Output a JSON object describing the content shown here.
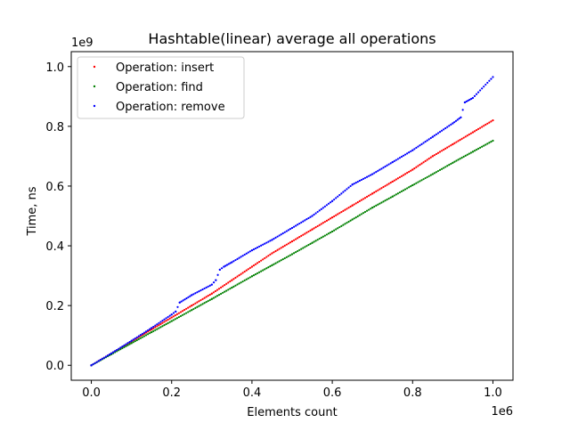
{
  "chart_data": {
    "type": "scatter",
    "title": "Hashtable(linear) average all operations",
    "xlabel": "Elements count",
    "ylabel": "Time, ns",
    "x_offset_label": "1e6",
    "y_offset_label": "1e9",
    "xlim": [
      -0.05,
      1.05
    ],
    "ylim": [
      -0.05,
      1.05
    ],
    "x_ticks": [
      0.0,
      0.2,
      0.4,
      0.6,
      0.8,
      1.0
    ],
    "x_tick_labels": [
      "0.0",
      "0.2",
      "0.4",
      "0.6",
      "0.8",
      "1.0"
    ],
    "y_ticks": [
      0.0,
      0.2,
      0.4,
      0.6,
      0.8,
      1.0
    ],
    "y_tick_labels": [
      "0.0",
      "0.2",
      "0.4",
      "0.6",
      "0.8",
      "1.0"
    ],
    "grid": false,
    "legend_position": "top-left",
    "series": [
      {
        "name": "Operation: insert",
        "color": "#ff0000",
        "x": [
          0.0,
          0.05,
          0.1,
          0.15,
          0.2,
          0.25,
          0.3,
          0.35,
          0.4,
          0.45,
          0.5,
          0.55,
          0.6,
          0.65,
          0.7,
          0.75,
          0.8,
          0.85,
          0.9,
          0.95,
          1.0
        ],
        "y": [
          0.0,
          0.04,
          0.08,
          0.12,
          0.16,
          0.2,
          0.24,
          0.285,
          0.33,
          0.375,
          0.415,
          0.455,
          0.495,
          0.535,
          0.575,
          0.615,
          0.655,
          0.7,
          0.74,
          0.78,
          0.82
        ]
      },
      {
        "name": "Operation: find",
        "color": "#008000",
        "x": [
          0.0,
          0.05,
          0.1,
          0.15,
          0.2,
          0.25,
          0.3,
          0.35,
          0.4,
          0.45,
          0.5,
          0.55,
          0.6,
          0.65,
          0.7,
          0.75,
          0.8,
          0.85,
          0.9,
          0.95,
          1.0
        ],
        "y": [
          0.0,
          0.037,
          0.074,
          0.111,
          0.148,
          0.185,
          0.222,
          0.26,
          0.298,
          0.335,
          0.372,
          0.41,
          0.448,
          0.488,
          0.528,
          0.565,
          0.603,
          0.64,
          0.678,
          0.715,
          0.752
        ]
      },
      {
        "name": "Operation: remove",
        "color": "#0000ff",
        "x": [
          0.0,
          0.05,
          0.1,
          0.15,
          0.2,
          0.21,
          0.22,
          0.25,
          0.3,
          0.31,
          0.32,
          0.33,
          0.35,
          0.4,
          0.45,
          0.5,
          0.55,
          0.6,
          0.65,
          0.7,
          0.75,
          0.8,
          0.85,
          0.9,
          0.92,
          0.93,
          0.95,
          1.0
        ],
        "y": [
          0.0,
          0.04,
          0.082,
          0.125,
          0.17,
          0.18,
          0.21,
          0.235,
          0.27,
          0.285,
          0.32,
          0.33,
          0.345,
          0.385,
          0.42,
          0.46,
          0.5,
          0.55,
          0.605,
          0.64,
          0.68,
          0.72,
          0.765,
          0.81,
          0.83,
          0.88,
          0.895,
          0.965
        ]
      }
    ]
  }
}
